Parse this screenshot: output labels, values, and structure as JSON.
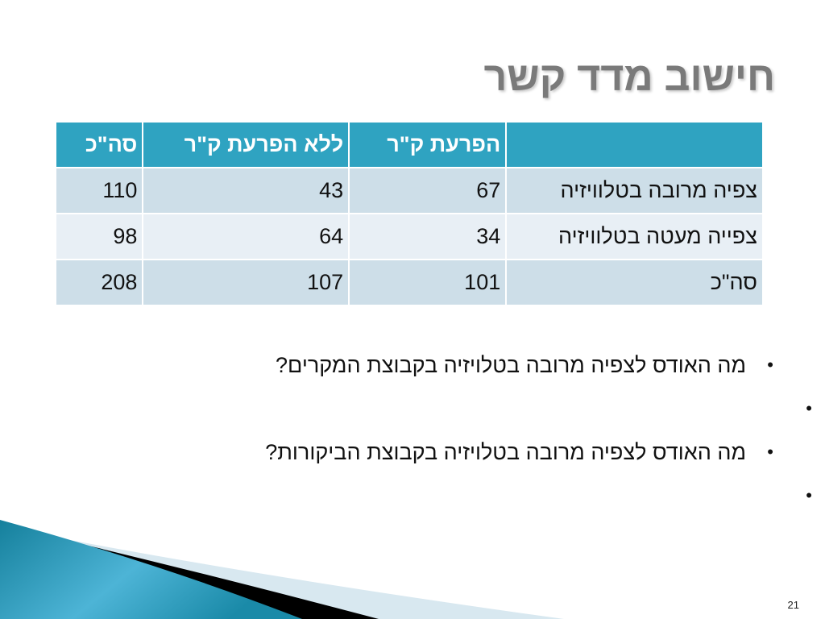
{
  "title": "חישוב מדד קשר",
  "table": {
    "headers": [
      "",
      "הפרעת ק\"ר",
      "ללא הפרעת ק\"ר",
      "סה\"כ"
    ],
    "rows": [
      [
        "צפיה מרובה בטלוויזיה",
        "67",
        "43",
        "110"
      ],
      [
        "צפייה מעטה בטלוויזיה",
        "34",
        "64",
        "98"
      ],
      [
        "סה\"כ",
        "101",
        "107",
        "208"
      ]
    ]
  },
  "bullets": [
    "מה האודס לצפיה מרובה בטלויזיה בקבוצת המקרים?",
    "",
    "מה האודס לצפיה מרובה בטלויזיה בקבוצת הביקורות?",
    ""
  ],
  "slide_number": "21",
  "colors": {
    "header": "#2fa3c1",
    "row_dark": "#cddee8",
    "row_light": "#e8eff5",
    "title": "#7a7a7a"
  }
}
